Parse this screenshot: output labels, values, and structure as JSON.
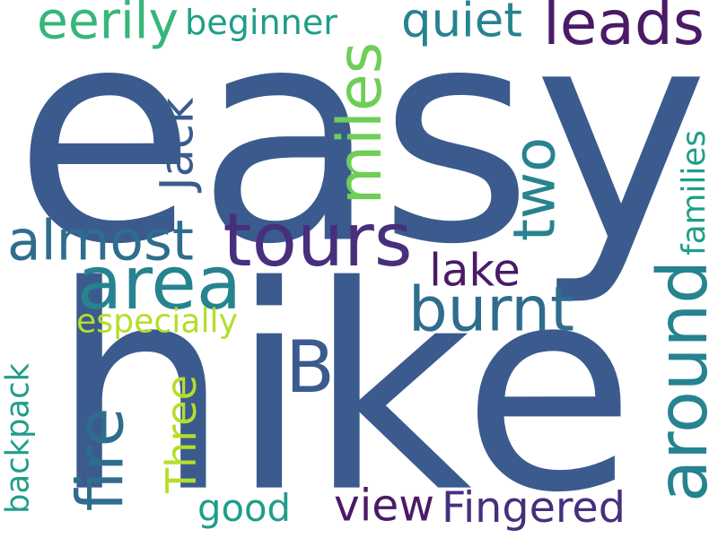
{
  "cloud": {
    "background": "#ffffff",
    "palette": {
      "dark_purple": "#4a1a67",
      "indigo": "#472f7d",
      "slate_blue": "#3b5b8e",
      "steel_blue": "#2f6d8e",
      "teal": "#26838f",
      "sea_green": "#1f9e89",
      "green": "#35b779",
      "light_green": "#6ece58",
      "lime": "#b5de2b"
    },
    "words": [
      {
        "id": "easy",
        "text": "easy",
        "color": "#3b5b8e",
        "orientation": "horizontal"
      },
      {
        "id": "hike",
        "text": "hike",
        "color": "#3b5b8e",
        "orientation": "horizontal"
      },
      {
        "id": "B",
        "text": "B",
        "color": "#3b5b8e",
        "orientation": "horizontal"
      },
      {
        "id": "tours",
        "text": "tours",
        "color": "#472f7d",
        "orientation": "horizontal"
      },
      {
        "id": "area",
        "text": "area",
        "color": "#26838f",
        "orientation": "horizontal"
      },
      {
        "id": "around",
        "text": "around",
        "color": "#26838f",
        "orientation": "vertical"
      },
      {
        "id": "leads",
        "text": "leads",
        "color": "#4a1a67",
        "orientation": "horizontal"
      },
      {
        "id": "almost",
        "text": "almost",
        "color": "#2f6d8e",
        "orientation": "horizontal"
      },
      {
        "id": "burnt",
        "text": "burnt",
        "color": "#2f6d8e",
        "orientation": "horizontal"
      },
      {
        "id": "miles",
        "text": "miles",
        "color": "#6ece58",
        "orientation": "vertical"
      },
      {
        "id": "two",
        "text": "two",
        "color": "#26838f",
        "orientation": "vertical"
      },
      {
        "id": "fire",
        "text": "fire",
        "color": "#2f6d8e",
        "orientation": "vertical"
      },
      {
        "id": "quiet",
        "text": "quiet",
        "color": "#26838f",
        "orientation": "horizontal"
      },
      {
        "id": "eerily",
        "text": "eerily",
        "color": "#35b779",
        "orientation": "horizontal"
      },
      {
        "id": "beginner",
        "text": "beginner",
        "color": "#1f9e89",
        "orientation": "horizontal"
      },
      {
        "id": "lake",
        "text": "lake",
        "color": "#4a1a67",
        "orientation": "horizontal"
      },
      {
        "id": "Jack",
        "text": "Jack",
        "color": "#3b5b8e",
        "orientation": "vertical"
      },
      {
        "id": "Three",
        "text": "Three",
        "color": "#b5de2b",
        "orientation": "vertical"
      },
      {
        "id": "good",
        "text": "good",
        "color": "#1f9e89",
        "orientation": "horizontal"
      },
      {
        "id": "view",
        "text": "view",
        "color": "#4a1a67",
        "orientation": "horizontal"
      },
      {
        "id": "Fingered",
        "text": "Fingered",
        "color": "#472f7d",
        "orientation": "horizontal"
      },
      {
        "id": "especially",
        "text": "especially",
        "color": "#b5de2b",
        "orientation": "horizontal"
      },
      {
        "id": "backpack",
        "text": "backpack",
        "color": "#1f9e89",
        "orientation": "vertical"
      },
      {
        "id": "families",
        "text": "families",
        "color": "#1f9e89",
        "orientation": "vertical"
      }
    ]
  }
}
